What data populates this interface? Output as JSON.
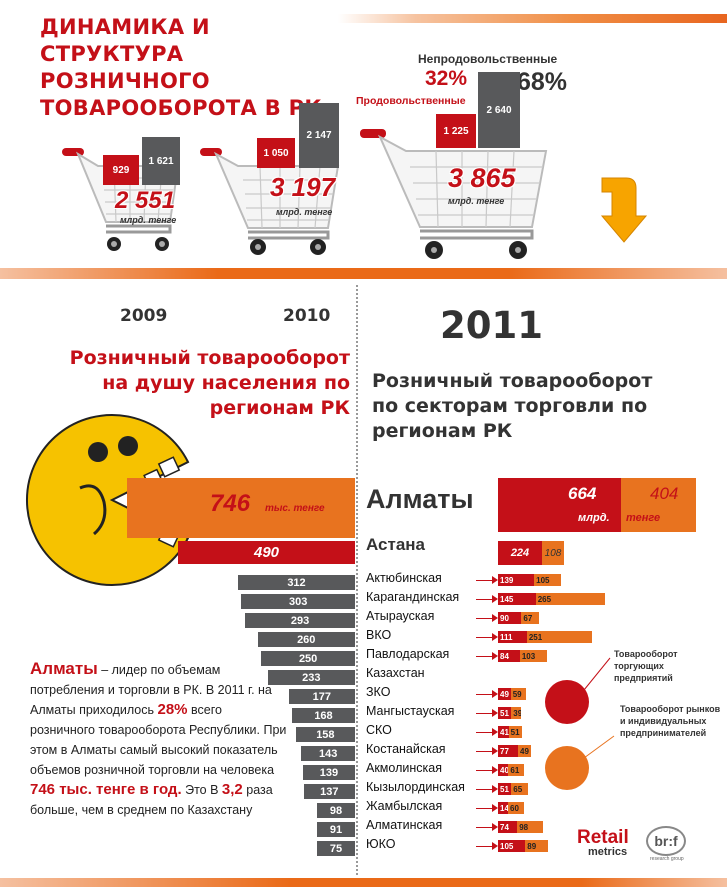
{
  "title": "ДИНАМИКА И СТРУКТУРА РОЗНИЧНОГО ТОВАРООБОРОТА В РК",
  "carts": [
    {
      "red": "929",
      "gray": "1 621",
      "total": "2 551",
      "unit": "млрд. тенге",
      "year": "2009"
    },
    {
      "red": "1 050",
      "gray": "2 147",
      "total": "3 197",
      "unit": "млрд. тенге",
      "year": "2010"
    },
    {
      "red": "1 225",
      "gray": "2 640",
      "total": "3 865",
      "unit": "млрд. тенге",
      "year": "2011"
    }
  ],
  "legend_top": {
    "nonfood_label": "Непродовольственные",
    "nonfood_pct": "68%",
    "food_pct": "32%",
    "food_label": "Продовольственные"
  },
  "left_title": "Розничный товарооборот на душу населения по регионам РК",
  "right_title": "Розничный товарооборот по секторам торговли по регионам РК",
  "percapita": {
    "top_value": "746",
    "top_unit": "тыс. тенге",
    "second_value": "490"
  },
  "right_top": {
    "almaty_label": "Алматы",
    "almaty_red": "664",
    "almaty_orange": "404",
    "unit_a": "млрд.",
    "unit_b": "тенге",
    "astana_label": "Астана",
    "astana_red": "224",
    "astana_orange": "108"
  },
  "paragraph": {
    "lead": "Алматы",
    "t1": " – лидер по объемам потребления и торговли в РК. В 2011 г. на Алматы приходилось ",
    "pct": "28%",
    "t2": " всего розничного товарооборота Республики. При этом в Алматы самый высокий показатель объемов розничной торговли на человека ",
    "amount": "746 тыс. тенге в год.",
    "t3": "   Это В ",
    "times": "3,2",
    "t4": " раза больше, чем в среднем по  Казахстану"
  },
  "legend_sector": {
    "red_label": "Товарооборот торгующих предприятий",
    "orange_label": "Товарооборот рынков и индивидуальных предпринимателей"
  },
  "brand": {
    "retail": "Retail",
    "metrics": "metrics",
    "brif": "br:f",
    "brif_sub": "research group"
  },
  "chart_data": [
    {
      "type": "bar",
      "title": "ДИНАМИКА И СТРУКТУРА РОЗНИЧНОГО ТОВАРООБОРОТА В РК",
      "categories": [
        "2009",
        "2010",
        "2011"
      ],
      "series": [
        {
          "name": "Продовольственные",
          "values": [
            929,
            1050,
            1225
          ]
        },
        {
          "name": "Непродовольственные",
          "values": [
            1621,
            2147,
            2640
          ]
        }
      ],
      "totals": [
        2551,
        3197,
        3865
      ]
    },
    {
      "type": "bar",
      "title": "Розничный товарооборот на душу населения по регионам РК",
      "values": [
        746,
        490,
        312,
        303,
        293,
        260,
        250,
        233,
        177,
        168,
        158,
        143,
        139,
        137,
        98,
        91,
        75
      ]
    },
    {
      "type": "bar",
      "title": "Розничный товарооборот по секторам торговли по регионам РК",
      "categories": [
        "Актюбинская",
        "Карагандинская",
        "Атырауская",
        "ВКО",
        "Павлодарская",
        "Казахстан",
        "ЗКО",
        "Мангыстауская",
        "СКО",
        "Костанайская",
        "Акмолинская",
        "Кызылординская",
        "Жамбылская",
        "Алматинская",
        "ЮКО"
      ],
      "series": [
        {
          "name": "Товарооборот торгующих предприятий",
          "values": [
            139,
            145,
            90,
            111,
            84,
            null,
            49,
            51,
            41,
            77,
            40,
            51,
            14,
            74,
            105
          ]
        },
        {
          "name": "Товарооборот рынков и индивидуальных предпринимателей",
          "values": [
            105,
            265,
            67,
            251,
            103,
            null,
            59,
            39,
            51,
            49,
            61,
            65,
            60,
            98,
            89
          ]
        }
      ]
    }
  ],
  "gray_values": [
    "312",
    "303",
    "293",
    "260",
    "250",
    "233",
    "177",
    "168",
    "158",
    "143",
    "139",
    "137",
    "98",
    "91",
    "75"
  ],
  "regions": [
    {
      "name": "Актюбинская",
      "red": "139",
      "orange": "105"
    },
    {
      "name": "Карагандинская",
      "red": "145",
      "orange": "265"
    },
    {
      "name": "Атырауская",
      "red": "90",
      "orange": "67"
    },
    {
      "name": "ВКО",
      "red": "111",
      "orange": "251"
    },
    {
      "name": "Павлодарская",
      "red": "84",
      "orange": "103"
    },
    {
      "name": "Казахстан",
      "red": "",
      "orange": ""
    },
    {
      "name": "ЗКО",
      "red": "49",
      "orange": "59"
    },
    {
      "name": "Мангыстауская",
      "red": "51",
      "orange": "39"
    },
    {
      "name": "СКО",
      "red": "41",
      "orange": "51"
    },
    {
      "name": "Костанайская",
      "red": "77",
      "orange": "49"
    },
    {
      "name": "Акмолинская",
      "red": "40",
      "orange": "61"
    },
    {
      "name": "Кызылординская",
      "red": "51",
      "orange": "65"
    },
    {
      "name": "Жамбылская",
      "red": "14",
      "orange": "60"
    },
    {
      "name": "Алматинская",
      "red": "74",
      "orange": "98"
    },
    {
      "name": "ЮКО",
      "red": "105",
      "orange": "89"
    }
  ]
}
